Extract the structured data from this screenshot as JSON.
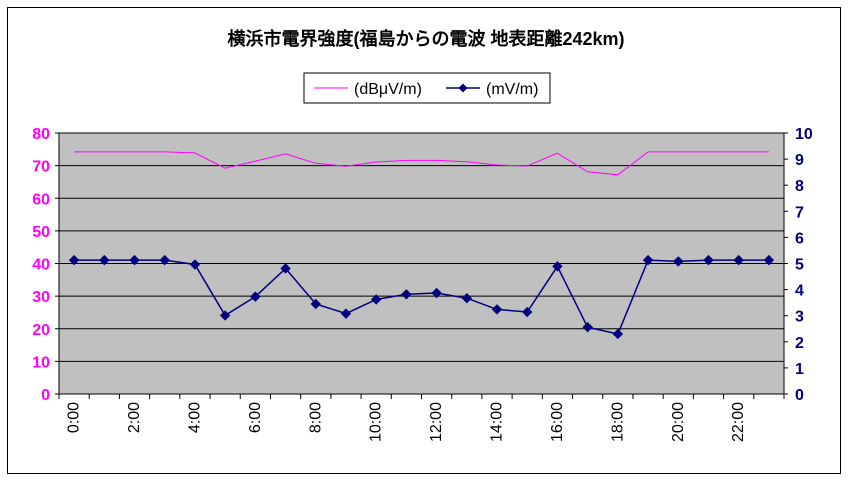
{
  "chart_data": {
    "type": "line",
    "title": "横浜市電界強度(福島からの電波 地表距離242km)",
    "legend": {
      "placement": "top-center",
      "items": [
        "(dBμV/m)",
        "(mV/m)"
      ]
    },
    "x": [
      "0:00",
      "1:00",
      "2:00",
      "3:00",
      "4:00",
      "5:00",
      "6:00",
      "7:00",
      "8:00",
      "9:00",
      "10:00",
      "11:00",
      "12:00",
      "13:00",
      "14:00",
      "15:00",
      "16:00",
      "17:00",
      "18:00",
      "19:00",
      "20:00",
      "21:00",
      "22:00",
      "23:00"
    ],
    "x_tick_labels": [
      "0:00",
      "2:00",
      "4:00",
      "6:00",
      "8:00",
      "10:00",
      "12:00",
      "14:00",
      "16:00",
      "18:00",
      "20:00",
      "22:00"
    ],
    "left_axis": {
      "min": 0,
      "max": 80,
      "step": 10,
      "ticks": [
        "0",
        "10",
        "20",
        "30",
        "40",
        "50",
        "60",
        "70",
        "80"
      ]
    },
    "right_axis": {
      "min": 0,
      "max": 10,
      "step": 1,
      "ticks": [
        "0",
        "1",
        "2",
        "3",
        "4",
        "5",
        "6",
        "7",
        "8",
        "9",
        "10"
      ]
    },
    "grid": true,
    "series": [
      {
        "name": "(dBμV/m)",
        "axis": "left",
        "color": "#ff00ff",
        "markers": false,
        "values": [
          74.2,
          74.2,
          74.2,
          74.2,
          73.9,
          69.2,
          71.4,
          73.6,
          70.7,
          69.8,
          71.1,
          71.6,
          71.6,
          71.2,
          70.2,
          69.9,
          73.8,
          68.1,
          67.2,
          74.2,
          74.2,
          74.2,
          74.2,
          74.2
        ]
      },
      {
        "name": "(mV/m)",
        "axis": "right",
        "color": "#000080",
        "markers": true,
        "values": [
          5.13,
          5.13,
          5.13,
          5.13,
          4.96,
          3.01,
          3.73,
          4.81,
          3.45,
          3.08,
          3.62,
          3.82,
          3.87,
          3.67,
          3.24,
          3.14,
          4.89,
          2.56,
          2.3,
          5.13,
          5.08,
          5.13,
          5.13,
          5.13
        ]
      }
    ]
  }
}
